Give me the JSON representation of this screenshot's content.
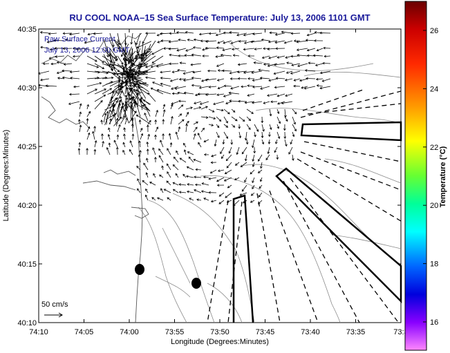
{
  "map": {
    "title": "RU COOL  NOAA–15  Sea Surface Temperature:  July 13, 2006 1101 GMT",
    "overlay_line1": "Raw Surface Current",
    "overlay_line2": "July 13, 2006 12:00 GMT",
    "xlabel": "Longitude (Degrees:Minutes)",
    "ylabel": "Latitude (Degrees:Minutes)",
    "x_ticks": [
      "74:10",
      "74:05",
      "74:00",
      "73:55",
      "73:50",
      "73:45",
      "73:40",
      "73:35",
      "73:3"
    ],
    "y_ticks": [
      "40:35",
      "40:30",
      "40:25",
      "40:20",
      "40:15",
      "40:10"
    ],
    "scale_label": "50 cm/s",
    "colorbar": {
      "label": "Temperature (°C)",
      "ticks": [
        "26",
        "24",
        "22",
        "20",
        "18",
        "16"
      ],
      "stops": [
        "#8b0000",
        "#ff0000",
        "#ff8000",
        "#ffff00",
        "#80ff00",
        "#00ff80",
        "#00ffff",
        "#0080ff",
        "#0000ff",
        "#8000ff",
        "#ff80ff"
      ]
    }
  }
}
